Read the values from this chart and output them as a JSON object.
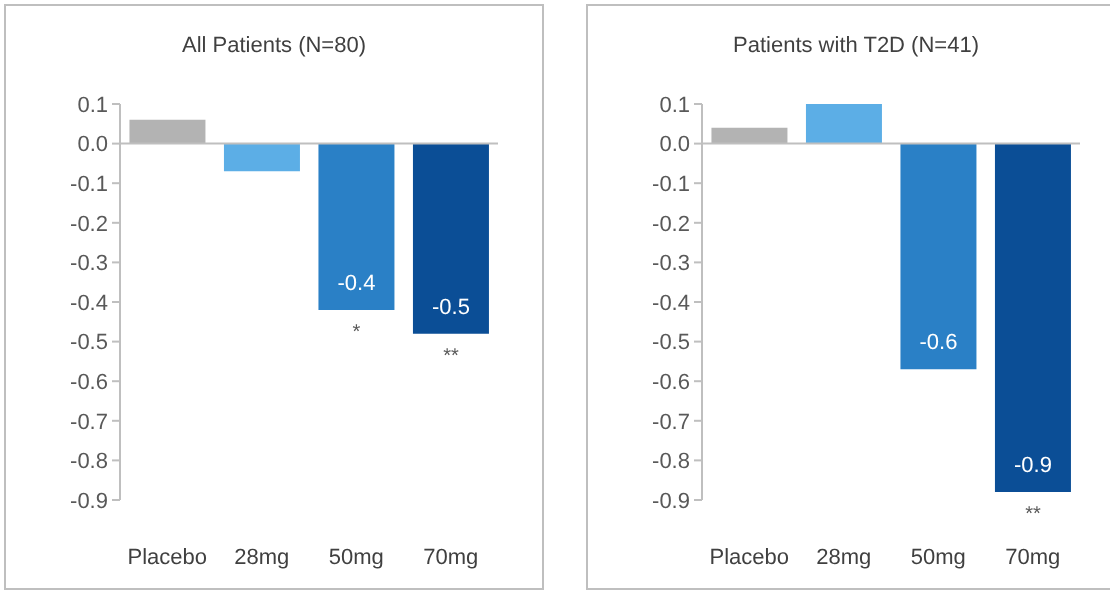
{
  "chart_data": [
    {
      "type": "bar",
      "title": "All Patients (N=80)",
      "categories": [
        "Placebo",
        "28mg",
        "50mg",
        "70mg"
      ],
      "values": [
        0.06,
        -0.07,
        -0.42,
        -0.48
      ],
      "colors": [
        "#b3b3b3",
        "#5caee6",
        "#2a80c6",
        "#0b4e96"
      ],
      "value_labels": [
        null,
        null,
        "-0.4",
        "-0.5"
      ],
      "ylim": [
        -0.9,
        0.1
      ],
      "yticks": [
        0.1,
        {
          "value": 0,
          "label": "0.0"
        },
        -0.1,
        -0.2,
        -0.3,
        -0.4,
        -0.5,
        -0.6,
        -0.7,
        -0.8,
        -0.9
      ],
      "legend": false,
      "annotations": [
        {
          "text": "*",
          "x": "50mg",
          "y": -0.42
        },
        {
          "text": "**",
          "x": "70mg",
          "y": -0.48
        }
      ]
    },
    {
      "type": "bar",
      "title": "Patients with T2D (N=41)",
      "categories": [
        "Placebo",
        "28mg",
        "50mg",
        "70mg"
      ],
      "values": [
        0.04,
        0.1,
        -0.57,
        -0.88
      ],
      "colors": [
        "#b3b3b3",
        "#5caee6",
        "#2a80c6",
        "#0b4e96"
      ],
      "value_labels": [
        null,
        null,
        "-0.6",
        "-0.9"
      ],
      "ylim": [
        -0.9,
        0.1
      ],
      "yticks": [
        0.1,
        {
          "value": 0,
          "label": "0.0"
        },
        -0.1,
        -0.2,
        -0.3,
        -0.4,
        -0.5,
        -0.6,
        -0.7,
        -0.8,
        -0.9
      ],
      "legend": false,
      "annotations": [
        {
          "text": "**",
          "x": "70mg",
          "y": -0.88
        }
      ]
    }
  ]
}
